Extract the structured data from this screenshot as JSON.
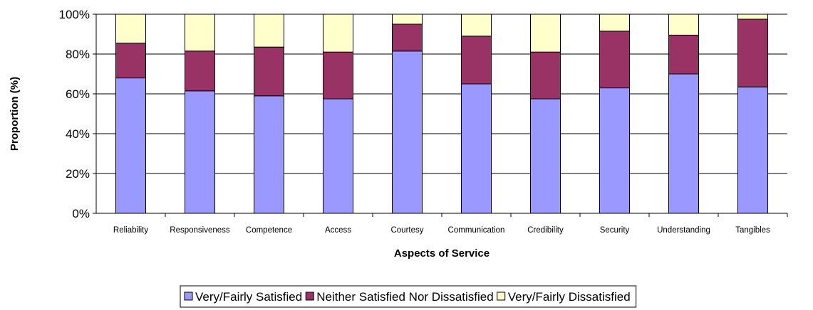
{
  "chart_data": {
    "type": "bar",
    "stacked": true,
    "percent_stacked": true,
    "categories": [
      "Reliability",
      "Responsiveness",
      "Competence",
      "Access",
      "Courtesy",
      "Communication",
      "Credibility",
      "Security",
      "Understanding",
      "Tangibles"
    ],
    "series": [
      {
        "name": "Very/Fairly Satisfied",
        "color": "#9999ff",
        "values": [
          68,
          61.5,
          59,
          57.5,
          81.5,
          65,
          57.5,
          63,
          70,
          63.5
        ]
      },
      {
        "name": "Neither Satisfied Nor Dissatisfied",
        "color": "#993366",
        "values": [
          17.5,
          20,
          24.5,
          23.5,
          13.5,
          24,
          23.5,
          28.5,
          19.5,
          34
        ]
      },
      {
        "name": "Very/Fairly Dissatisfied",
        "color": "#ffffcc",
        "values": [
          14.5,
          18.5,
          16.5,
          19,
          5,
          11,
          19,
          8.5,
          10.5,
          2.5
        ]
      }
    ],
    "title": "",
    "xlabel": "Aspects of Service",
    "ylabel": "Proportion (%)",
    "ylim": [
      0,
      100
    ],
    "yticks": [
      "0%",
      "20%",
      "40%",
      "60%",
      "80%",
      "100%"
    ],
    "grid": true,
    "legend_position": "bottom"
  }
}
